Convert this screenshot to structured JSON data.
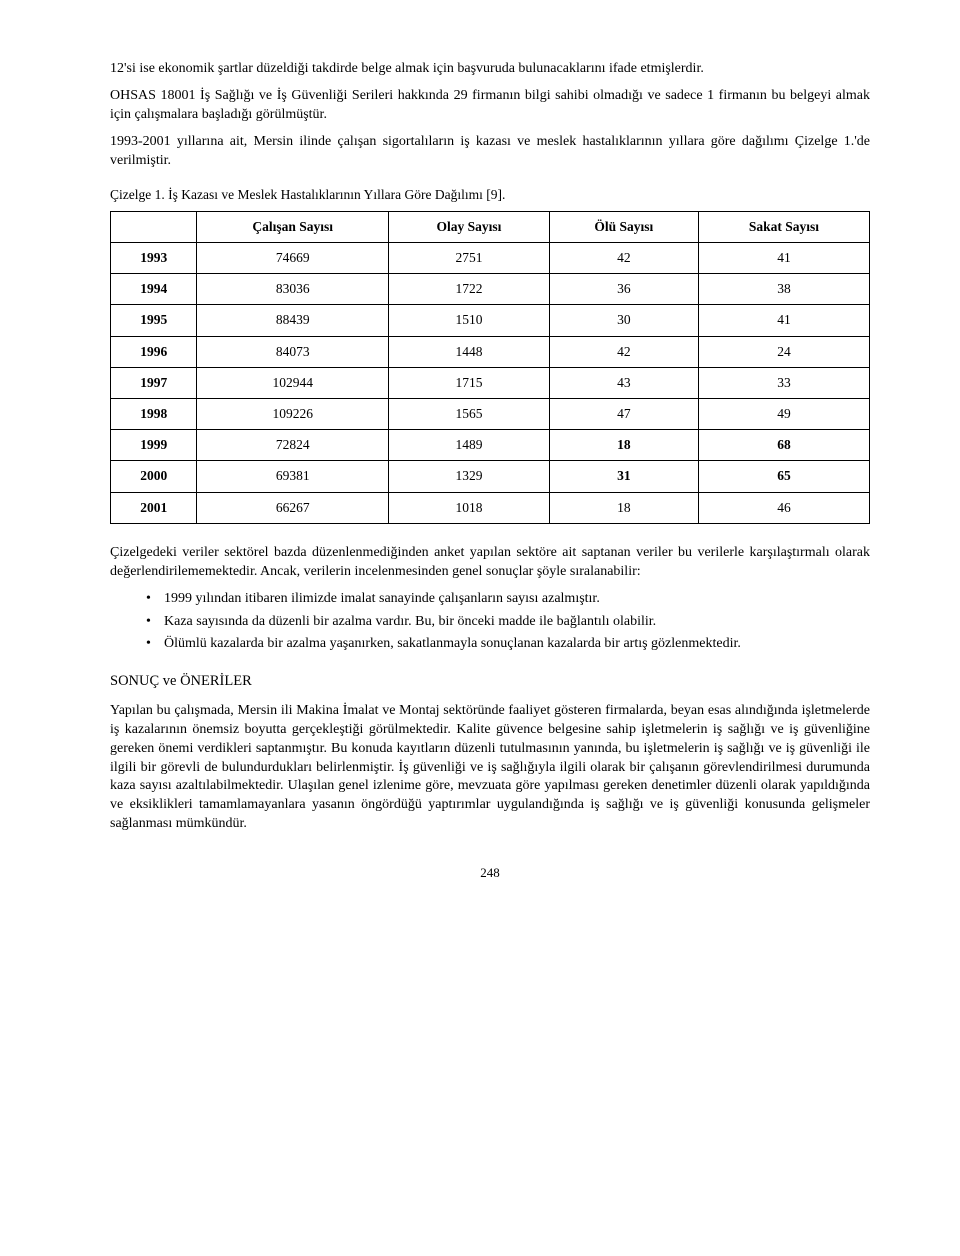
{
  "paragraphs": {
    "p1": "12'si ise ekonomik şartlar düzeldiği takdirde belge almak için başvuruda bulunacaklarını ifade etmişlerdir.",
    "p2": "OHSAS 18001 İş Sağlığı ve İş Güvenliği Serileri hakkında 29 firmanın bilgi sahibi olmadığı ve sadece 1 firmanın bu belgeyi almak için çalışmalara başladığı görülmüştür.",
    "p3": "1993-2001 yıllarına ait, Mersin ilinde çalışan sigortalıların iş kazası ve meslek hastalıklarının yıllara göre dağılımı Çizelge 1.'de verilmiştir.",
    "tableCaption": "Çizelge 1. İş Kazası ve Meslek Hastalıklarının Yıllara Göre Dağılımı [9].",
    "afterTable": "Çizelgedeki veriler sektörel bazda düzenlenmediğinden anket yapılan sektöre ait saptanan veriler bu verilerle karşılaştırmalı olarak değerlendirilememektedir. Ancak, verilerin incelenmesinden genel sonuçlar şöyle sıralanabilir:",
    "sectionTitle": "SONUÇ ve ÖNERİLER",
    "conc": "Yapılan bu çalışmada, Mersin ili Makina İmalat ve Montaj sektöründe faaliyet gösteren firmalarda, beyan esas alındığında işletmelerde iş kazalarının önemsiz boyutta gerçekleştiği görülmektedir. Kalite güvence belgesine sahip işletmelerin iş sağlığı ve iş güvenliğine gereken önemi verdikleri saptanmıştır. Bu konuda kayıtların düzenli tutulmasının yanında, bu işletmelerin iş sağlığı ve iş güvenliği ile ilgili bir görevli de bulundurdukları belirlenmiştir. İş güvenliği ve iş sağlığıyla ilgili olarak bir çalışanın görevlendirilmesi durumunda kaza sayısı azaltılabilmektedir. Ulaşılan genel izlenime göre, mevzuata göre yapılması gereken denetimler düzenli olarak yapıldığında ve eksiklikleri tamamlamayanlara yasanın öngördüğü yaptırımlar uygulandığında iş sağlığı ve iş güvenliği konusunda gelişmeler sağlanması mümkündür."
  },
  "bullets": [
    "1999 yılından itibaren ilimizde imalat sanayinde çalışanların sayısı azalmıştır.",
    "Kaza sayısında da düzenli bir azalma vardır. Bu, bir önceki madde ile bağlantılı olabilir.",
    "Ölümlü kazalarda bir azalma yaşanırken, sakatlanmayla sonuçlanan kazalarda bir artış gözlenmektedir."
  ],
  "table": {
    "headers": [
      "",
      "Çalışan Sayısı",
      "Olay Sayısı",
      "Ölü Sayısı",
      "Sakat Sayısı"
    ],
    "rows": [
      {
        "year": "1993",
        "c1": "74669",
        "c2": "2751",
        "c3": "42",
        "c4": "41",
        "bold": []
      },
      {
        "year": "1994",
        "c1": "83036",
        "c2": "1722",
        "c3": "36",
        "c4": "38",
        "bold": []
      },
      {
        "year": "1995",
        "c1": "88439",
        "c2": "1510",
        "c3": "30",
        "c4": "41",
        "bold": []
      },
      {
        "year": "1996",
        "c1": "84073",
        "c2": "1448",
        "c3": "42",
        "c4": "24",
        "bold": []
      },
      {
        "year": "1997",
        "c1": "102944",
        "c2": "1715",
        "c3": "43",
        "c4": "33",
        "bold": []
      },
      {
        "year": "1998",
        "c1": "109226",
        "c2": "1565",
        "c3": "47",
        "c4": "49",
        "bold": []
      },
      {
        "year": "1999",
        "c1": "72824",
        "c2": "1489",
        "c3": "18",
        "c4": "68",
        "bold": [
          "c3",
          "c4"
        ]
      },
      {
        "year": "2000",
        "c1": "69381",
        "c2": "1329",
        "c3": "31",
        "c4": "65",
        "bold": [
          "c3",
          "c4"
        ]
      },
      {
        "year": "2001",
        "c1": "66267",
        "c2": "1018",
        "c3": "18",
        "c4": "46",
        "bold": []
      }
    ]
  },
  "pageNumber": "248"
}
